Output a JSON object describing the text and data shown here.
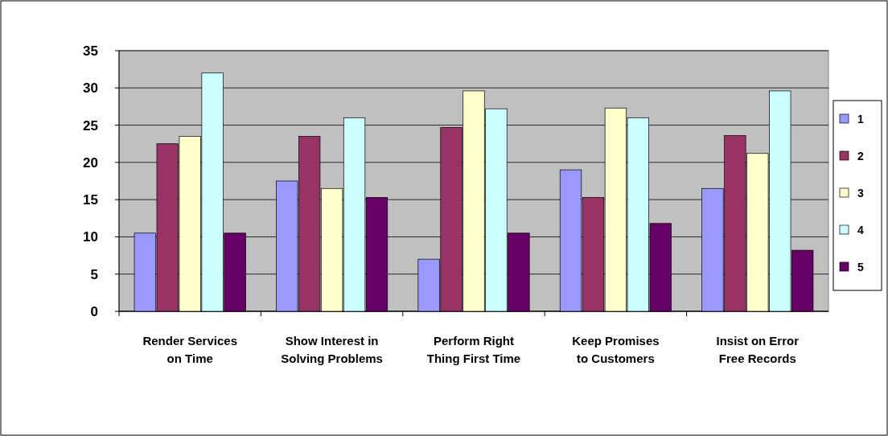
{
  "chart_data": {
    "type": "bar",
    "categories": [
      "Render Services on Time",
      "Show Interest in Solving Problems",
      "Perform Right Thing First Time",
      "Keep Promises to Customers",
      "Insist on Error Free Records"
    ],
    "series": [
      {
        "name": "1",
        "color": "#9999ff",
        "values": [
          10.5,
          17.5,
          7,
          19,
          16.5
        ]
      },
      {
        "name": "2",
        "color": "#993366",
        "values": [
          22.5,
          23.5,
          24.7,
          15.3,
          23.6
        ]
      },
      {
        "name": "3",
        "color": "#ffffcc",
        "values": [
          23.5,
          16.5,
          29.6,
          27.3,
          21.2
        ]
      },
      {
        "name": "4",
        "color": "#ccffff",
        "values": [
          32,
          26,
          27.2,
          26,
          29.6
        ]
      },
      {
        "name": "5",
        "color": "#660066",
        "values": [
          10.5,
          15.3,
          10.5,
          11.8,
          8.2
        ]
      }
    ],
    "ylim": [
      0,
      35
    ],
    "yticks": [
      0,
      5,
      10,
      15,
      20,
      25,
      30,
      35
    ],
    "grid": "y",
    "legend": "right"
  }
}
